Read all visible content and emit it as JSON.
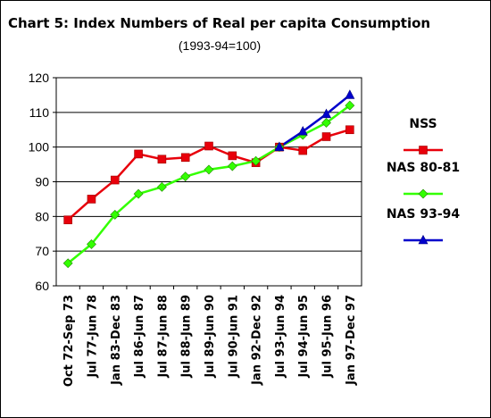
{
  "title": "Chart 5: Index Numbers of Real  per capita Consumption",
  "subtitle": "(1993-94=100)",
  "chart_data": {
    "type": "line",
    "title": "Chart 5: Index Numbers of Real  per capita Consumption",
    "subtitle": "(1993-94=100)",
    "categories": [
      "Oct 72-Sep 73",
      "Jul 77-Jun 78",
      "Jan 83-Dec 83",
      "Jul 86-Jun 87",
      "Jul 87-Jun 88",
      "Jul 88-Jun 89",
      "Jul 89-Jun 90",
      "Jul 90-Jun 91",
      "Jan 92-Dec 92",
      "Jul 93-Jun 94",
      "Jul 94-Jun 95",
      "Jul 95-Jun 96",
      "Jan 97-Dec 97"
    ],
    "ylim": [
      60,
      120
    ],
    "yticks": [
      60,
      70,
      80,
      90,
      100,
      110,
      120
    ],
    "grid": true,
    "legend": "right",
    "series": [
      {
        "name": "NSS",
        "color": "#e8000b",
        "marker": "square",
        "values": [
          79,
          85,
          90.5,
          98,
          96.5,
          97,
          100.3,
          97.5,
          95.5,
          100,
          99,
          103,
          105
        ]
      },
      {
        "name": "NAS 80-81",
        "color": "#33ff00",
        "marker": "diamond",
        "values": [
          66.5,
          72,
          80.5,
          86.5,
          88.5,
          91.5,
          93.5,
          94.5,
          96,
          100,
          103.5,
          107,
          112
        ]
      },
      {
        "name": "NAS 93-94",
        "color": "#0000cc",
        "marker": "triangle",
        "values": [
          null,
          null,
          null,
          null,
          null,
          null,
          null,
          null,
          null,
          100,
          104.5,
          109.5,
          115
        ]
      }
    ]
  }
}
